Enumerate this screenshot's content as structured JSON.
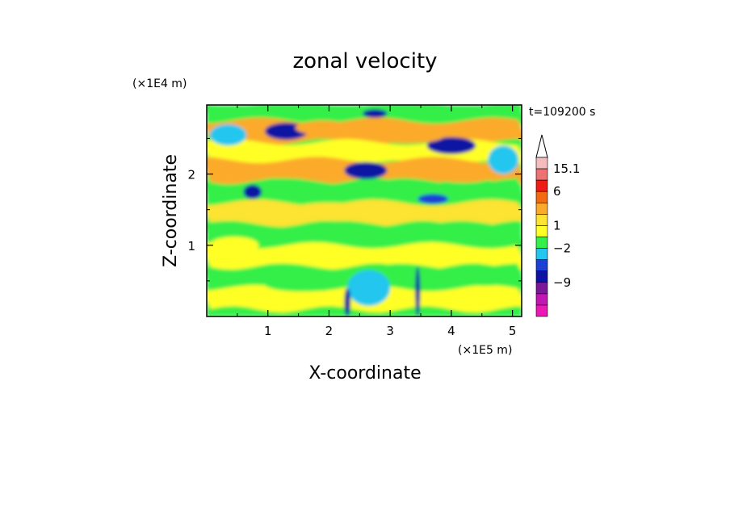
{
  "chart_data": {
    "type": "heatmap",
    "title": "zonal velocity",
    "xlabel": "X-coordinate",
    "ylabel": "Z-coordinate",
    "x_scale_note": "(×1E5 m)",
    "y_scale_note": "(×1E4 m)",
    "time_label": "t=109200 s",
    "xlim": [
      0,
      5.15
    ],
    "ylim": [
      0,
      2.97
    ],
    "x_ticks": [
      1,
      2,
      3,
      4,
      5
    ],
    "y_ticks": [
      1,
      2
    ],
    "x_tick_labels": [
      "1",
      "2",
      "3",
      "4",
      "5"
    ],
    "y_tick_labels": [
      "1",
      "2"
    ],
    "colorbar": {
      "tick_labels": [
        "15.1",
        "6",
        "1",
        "−2",
        "−9"
      ],
      "levels_top_to_bottom": [
        {
          "color": "#f4bcbc"
        },
        {
          "color": "#ee7272"
        },
        {
          "color": "#ee1c14"
        },
        {
          "color": "#f26b12"
        },
        {
          "color": "#fbaa2c"
        },
        {
          "color": "#fde332"
        },
        {
          "color": "#ffff28"
        },
        {
          "color": "#35ef4a"
        },
        {
          "color": "#23c6ee"
        },
        {
          "color": "#1a40d6"
        },
        {
          "color": "#0e12a2"
        },
        {
          "color": "#7a189a"
        },
        {
          "color": "#c016b4"
        },
        {
          "color": "#ec18b6"
        }
      ],
      "extend_top": true
    },
    "field_bands": [
      {
        "z": 2.85,
        "level": 7
      },
      {
        "z": 2.6,
        "level": 4
      },
      {
        "z": 2.3,
        "level": 6
      },
      {
        "z": 2.05,
        "level": 4
      },
      {
        "z": 1.75,
        "level": 7
      },
      {
        "z": 1.45,
        "level": 5
      },
      {
        "z": 1.15,
        "level": 7
      },
      {
        "z": 0.85,
        "level": 6
      },
      {
        "z": 0.55,
        "level": 7
      },
      {
        "z": 0.25,
        "level": 6
      }
    ],
    "features": [
      {
        "x": 1.3,
        "z": 2.6,
        "rx": 0.35,
        "rz": 0.12,
        "level": 10
      },
      {
        "x": 2.6,
        "z": 2.05,
        "rx": 0.35,
        "rz": 0.12,
        "level": 10
      },
      {
        "x": 4.0,
        "z": 2.4,
        "rx": 0.4,
        "rz": 0.12,
        "level": 10
      },
      {
        "x": 3.7,
        "z": 1.65,
        "rx": 0.25,
        "rz": 0.07,
        "level": 9
      },
      {
        "x": 0.75,
        "z": 1.75,
        "rx": 0.15,
        "rz": 0.1,
        "level": 10
      },
      {
        "x": 1.9,
        "z": 2.65,
        "rx": 0.45,
        "rz": 0.1,
        "level": 4
      },
      {
        "x": 3.3,
        "z": 2.55,
        "rx": 0.6,
        "rz": 0.12,
        "level": 4
      },
      {
        "x": 4.2,
        "z": 2.0,
        "rx": 0.55,
        "rz": 0.12,
        "level": 4
      },
      {
        "x": 0.6,
        "z": 2.0,
        "rx": 0.5,
        "rz": 0.1,
        "level": 4
      },
      {
        "x": 2.0,
        "z": 1.5,
        "rx": 0.6,
        "rz": 0.1,
        "level": 5
      },
      {
        "x": 0.35,
        "z": 2.55,
        "rx": 0.3,
        "rz": 0.15,
        "level": 8
      },
      {
        "x": 4.85,
        "z": 2.2,
        "rx": 0.25,
        "rz": 0.2,
        "level": 8
      },
      {
        "x": 0.45,
        "z": 1.0,
        "rx": 0.4,
        "rz": 0.12,
        "level": 6
      },
      {
        "x": 1.55,
        "z": 0.45,
        "rx": 0.6,
        "rz": 0.1,
        "level": 7
      },
      {
        "x": 4.55,
        "z": 0.55,
        "rx": 0.55,
        "rz": 0.12,
        "level": 7
      },
      {
        "x": 2.65,
        "z": 0.4,
        "rx": 0.35,
        "rz": 0.25,
        "level": 8
      },
      {
        "x": 3.45,
        "z": 0.35,
        "rx": 0.04,
        "rz": 0.35,
        "level": 10
      },
      {
        "x": 2.3,
        "z": 0.2,
        "rx": 0.05,
        "rz": 0.2,
        "level": 10
      },
      {
        "x": 2.75,
        "z": 2.85,
        "rx": 0.2,
        "rz": 0.06,
        "level": 10
      }
    ]
  }
}
